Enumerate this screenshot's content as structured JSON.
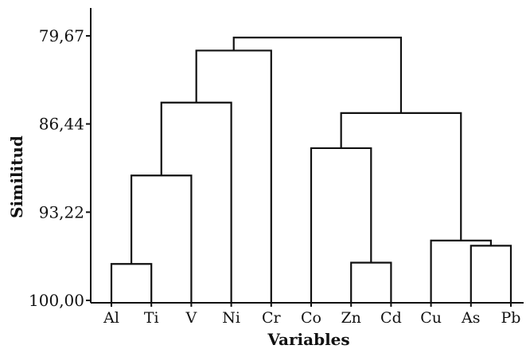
{
  "chart_data": {
    "type": "dendrogram",
    "title": "",
    "xlabel": "Variables",
    "ylabel": "Similitud",
    "y_ticks": [
      "79,67",
      "86,44",
      "93,22",
      "100,00"
    ],
    "y_tick_values": [
      79.67,
      86.44,
      93.22,
      100.0
    ],
    "ylim": [
      79.0,
      100.0
    ],
    "y_inverted": true,
    "leaves": [
      "Al",
      "Ti",
      "V",
      "Ni",
      "Cr",
      "Co",
      "Zn",
      "Cd",
      "Cu",
      "As",
      "Pb"
    ],
    "merges": [
      {
        "left": "Al",
        "right": "Ti",
        "similarity": 97.2
      },
      {
        "left": "Zn",
        "right": "Cd",
        "similarity": 97.1
      },
      {
        "left": "As",
        "right": "Pb",
        "similarity": 95.8
      },
      {
        "left": "Cu",
        "right": "As-Pb",
        "similarity": 95.4
      },
      {
        "left": "Al-Ti",
        "right": "V",
        "similarity": 90.4
      },
      {
        "left": "Co",
        "right": "Zn-Cd",
        "similarity": 88.3
      },
      {
        "left": "Al-Ti-V",
        "right": "Ni",
        "similarity": 84.8
      },
      {
        "left": "Co-Zn-Cd",
        "right": "Cu-As-Pb",
        "similarity": 85.6
      },
      {
        "left": "Al-Ti-V-Ni",
        "right": "Cr",
        "similarity": 80.8
      },
      {
        "left": "Al-Ti-V-Ni-Cr",
        "right": "Co-Zn-Cd-Cu-As-Pb",
        "similarity": 79.8
      }
    ],
    "line_color": "#111111"
  }
}
